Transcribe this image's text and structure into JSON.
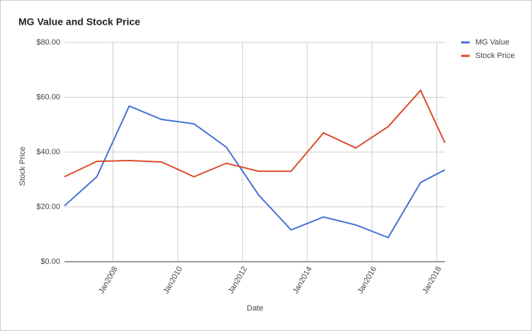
{
  "chart_data": {
    "type": "line",
    "title": "MG Value and Stock Price",
    "x_label": "Date",
    "y_label": "Stock Price",
    "x": [
      2006.5,
      2007.5,
      2008.5,
      2009.5,
      2010.5,
      2011.5,
      2012.5,
      2013.5,
      2014.5,
      2015.5,
      2016.5,
      2017.5,
      2018.25
    ],
    "series": [
      {
        "name": "MG Value",
        "color": "#4372d6",
        "values": [
          20.4,
          31.0,
          56.8,
          51.9,
          50.3,
          41.8,
          24.3,
          11.6,
          16.3,
          13.4,
          8.8,
          28.9,
          33.5
        ]
      },
      {
        "name": "Stock Price",
        "color": "#dc4b2a",
        "values": [
          31.0,
          36.6,
          36.9,
          36.4,
          31.0,
          35.9,
          33.0,
          33.0,
          47.0,
          41.5,
          49.3,
          62.5,
          43.4
        ]
      }
    ],
    "xlim": [
      2006.5,
      2018.25
    ],
    "xticks": [
      {
        "value": 2008,
        "label": "Jan2008"
      },
      {
        "value": 2010,
        "label": "Jan2010"
      },
      {
        "value": 2012,
        "label": "Jan2012"
      },
      {
        "value": 2014,
        "label": "Jan2014"
      },
      {
        "value": 2016,
        "label": "Jan2016"
      },
      {
        "value": 2018,
        "label": "Jan2018"
      }
    ],
    "ylim": [
      0,
      80
    ],
    "yticks": [
      {
        "value": 0,
        "label": "$0.00"
      },
      {
        "value": 20,
        "label": "$20.00"
      },
      {
        "value": 40,
        "label": "$40.00"
      },
      {
        "value": 60,
        "label": "$60.00"
      },
      {
        "value": 80,
        "label": "$80.00"
      }
    ],
    "grid": true,
    "legend": "right"
  }
}
